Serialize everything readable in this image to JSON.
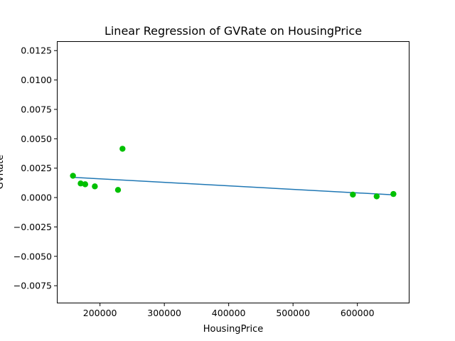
{
  "chart_data": {
    "type": "scatter",
    "title": "Linear Regression of GVRate on HousingPrice",
    "xlabel": "HousingPrice",
    "ylabel": "GVRate",
    "xlim": [
      133000,
      681000
    ],
    "ylim": [
      -0.009,
      0.0133
    ],
    "x_ticks": [
      200000,
      300000,
      400000,
      500000,
      600000
    ],
    "x_tick_labels": [
      "200000",
      "300000",
      "400000",
      "500000",
      "600000"
    ],
    "y_ticks": [
      -0.0075,
      -0.005,
      -0.0025,
      0.0,
      0.0025,
      0.005,
      0.0075,
      0.01,
      0.0125
    ],
    "y_tick_labels": [
      "−0.0075",
      "−0.0050",
      "−0.0025",
      "0.0000",
      "0.0025",
      "0.0050",
      "0.0075",
      "0.0100",
      "0.0125"
    ],
    "grid": false,
    "series": [
      {
        "kind": "scatter",
        "color": "#00c000",
        "points": [
          {
            "x": 158000,
            "y": 0.00185
          },
          {
            "x": 170000,
            "y": 0.0012
          },
          {
            "x": 177000,
            "y": 0.00113
          },
          {
            "x": 192000,
            "y": 0.00095
          },
          {
            "x": 228000,
            "y": 0.00065
          },
          {
            "x": 235000,
            "y": 0.00415
          },
          {
            "x": 593000,
            "y": 0.00025
          },
          {
            "x": 630000,
            "y": 0.0001
          },
          {
            "x": 656000,
            "y": 0.0003
          }
        ]
      },
      {
        "kind": "line",
        "color": "#1f77b4",
        "points": [
          {
            "x": 158000,
            "y": 0.00172
          },
          {
            "x": 656000,
            "y": 0.00023
          }
        ]
      }
    ]
  }
}
